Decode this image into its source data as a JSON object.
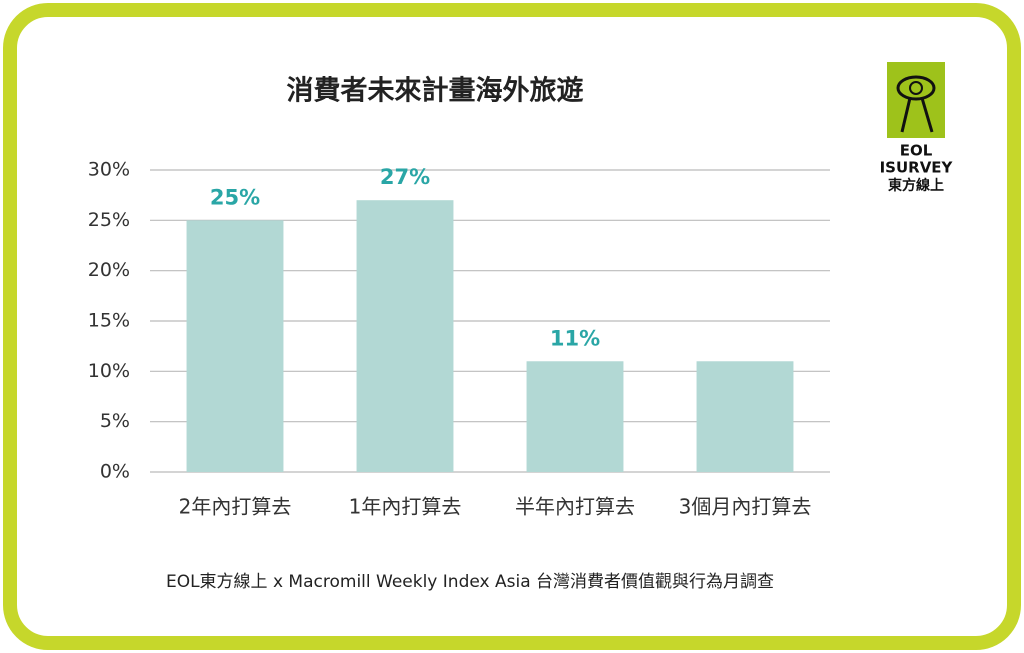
{
  "chart_data": {
    "type": "bar",
    "title": "消費者未來計畫海外旅遊",
    "categories": [
      "2年內打算去",
      "1年內打算去",
      "半年內打算去",
      "3個月內打算去"
    ],
    "values": [
      25,
      27,
      11,
      11
    ],
    "value_labels": [
      "25%",
      "27%",
      "11%",
      null
    ],
    "color": "#b2d8d4",
    "label_color": "#2aa6a6",
    "ylim": [
      0,
      30
    ],
    "yticks": [
      {
        "value": 0,
        "label": "0%"
      },
      {
        "value": 5,
        "label": "5%"
      },
      {
        "value": 10,
        "label": "10%"
      },
      {
        "value": 15,
        "label": "15%"
      },
      {
        "value": 20,
        "label": "20%"
      },
      {
        "value": 25,
        "label": "25%"
      },
      {
        "value": 30,
        "label": "30%"
      }
    ],
    "grid": true,
    "source": "EOL東方線上 x Macromill Weekly Index Asia 台灣消費者價值觀與行為月調查"
  },
  "logo": {
    "line1": "EOL",
    "line2": "ISURVEY",
    "line3": "東方線上"
  }
}
